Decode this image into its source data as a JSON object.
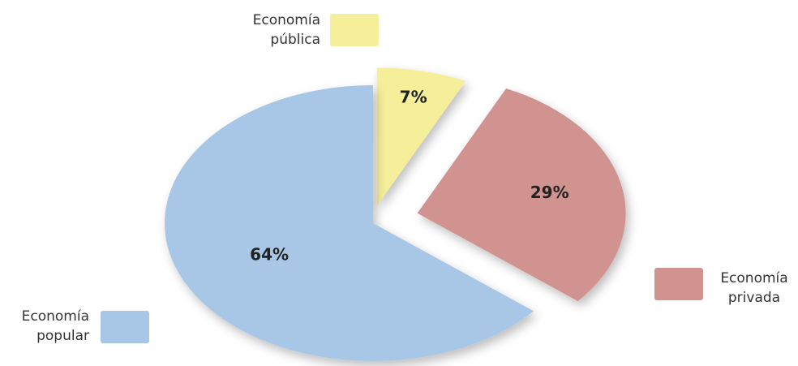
{
  "chart_data": {
    "type": "pie",
    "categories": [
      "Economía pública",
      "Economía privada",
      "Economía popular"
    ],
    "values": [
      7,
      29,
      64
    ],
    "value_labels": [
      "7%",
      "29%",
      "64%"
    ],
    "colors": [
      "#f5ef9a",
      "#d09390",
      "#a8c7e6"
    ]
  }
}
